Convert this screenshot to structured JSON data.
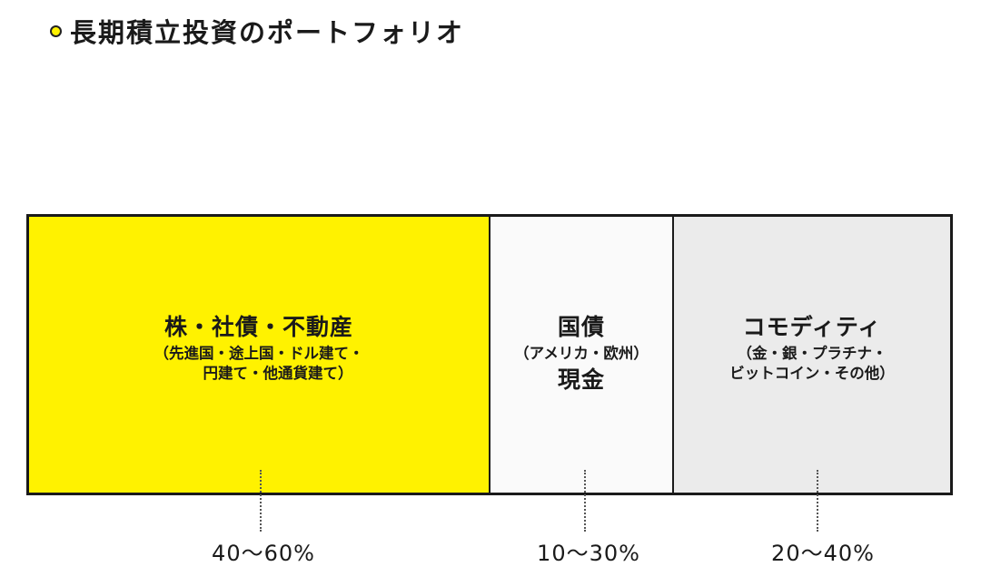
{
  "header": {
    "title": "長期積立投資のポートフォリオ"
  },
  "colors": {
    "accent": "#fff200",
    "bonds_fill": "#fafafa",
    "commodity_fill": "#ebebeb",
    "border": "#1a1a1a"
  },
  "segments": [
    {
      "title": "株・社債・不動産",
      "detail_lines": [
        "（先進国・途上国・ドル建て・",
        "円建て・他通貨建て）"
      ],
      "range": "40〜60%"
    },
    {
      "title": "国債",
      "detail_lines": [
        "（アメリカ・欧州）"
      ],
      "title2": "現金",
      "range": "10〜30%"
    },
    {
      "title": "コモディティ",
      "detail_lines": [
        "（金・銀・プラチナ・",
        "ビットコイン・その他）"
      ],
      "range": "20〜40%"
    }
  ]
}
